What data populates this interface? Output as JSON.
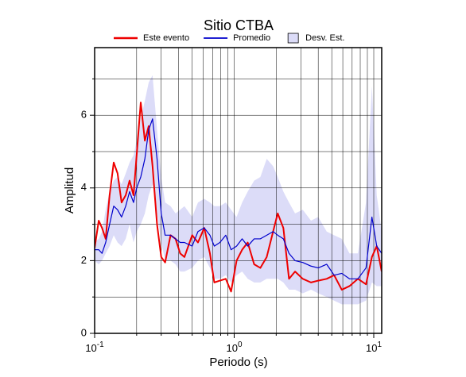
{
  "chart_data": {
    "type": "line",
    "title": "Sitio CTBA",
    "xlabel": "Periodo (s)",
    "ylabel": "Amplitud",
    "log_x": true,
    "grid": true,
    "legend": "top",
    "xlim": [
      0.1,
      11.4
    ],
    "ylim": [
      0,
      7.86
    ],
    "xticks": [
      {
        "value": 0.1,
        "label": "10",
        "exponent": "-1"
      },
      {
        "value": 1,
        "label": "10",
        "exponent": "0"
      },
      {
        "value": 10,
        "label": "10",
        "exponent": "1"
      }
    ],
    "xminor": [
      0.2,
      0.3,
      0.4,
      0.5,
      0.6,
      0.7,
      0.8,
      0.9,
      2,
      3,
      4,
      5,
      6,
      7,
      8,
      9
    ],
    "yticks": [
      0,
      2,
      4,
      6
    ],
    "yminor": [
      1,
      3,
      5,
      7
    ],
    "x": [
      0.1,
      0.107,
      0.113,
      0.12,
      0.128,
      0.137,
      0.146,
      0.156,
      0.167,
      0.178,
      0.19,
      0.2,
      0.214,
      0.229,
      0.244,
      0.26,
      0.28,
      0.3,
      0.32,
      0.35,
      0.38,
      0.41,
      0.44,
      0.5,
      0.55,
      0.61,
      0.67,
      0.72,
      0.79,
      0.87,
      0.95,
      1.04,
      1.14,
      1.25,
      1.39,
      1.54,
      1.71,
      1.9,
      2.05,
      2.25,
      2.47,
      2.73,
      3.1,
      3.55,
      4.0,
      4.6,
      5.2,
      5.9,
      6.7,
      7.7,
      8.8,
      9.7,
      10.5,
      11.4
    ],
    "band": {
      "name": "Desv. Est.",
      "color": "#dcdcf8",
      "edge": "#000000",
      "upper": [
        2.5,
        2.6,
        2.8,
        3.4,
        3.9,
        4.2,
        4.3,
        4.1,
        4.4,
        4.7,
        4.9,
        5.3,
        5.9,
        6.4,
        6.9,
        7.1,
        5.6,
        4.3,
        3.6,
        3.5,
        3.3,
        3.4,
        3.5,
        3.2,
        3.6,
        3.7,
        3.6,
        3.5,
        3.5,
        3.6,
        3.4,
        3.2,
        3.6,
        3.9,
        4.2,
        4.3,
        4.8,
        4.6,
        4.3,
        3.9,
        3.6,
        3.3,
        3.4,
        3.1,
        3.2,
        2.8,
        2.7,
        2.6,
        2.2,
        2.2,
        3.6,
        6.8,
        3.8,
        2.8
      ],
      "lower": [
        2.0,
        1.9,
        2.0,
        2.2,
        2.4,
        2.7,
        2.5,
        2.4,
        2.6,
        3.0,
        2.5,
        2.8,
        3.0,
        3.3,
        3.8,
        4.1,
        3.3,
        2.5,
        2.0,
        2.0,
        1.9,
        1.7,
        1.7,
        1.8,
        2.0,
        2.1,
        1.8,
        1.5,
        1.5,
        1.6,
        1.4,
        1.6,
        1.7,
        1.5,
        1.4,
        1.4,
        1.5,
        1.5,
        1.5,
        1.4,
        1.2,
        1.2,
        1.1,
        1.2,
        1.1,
        1.0,
        0.9,
        0.8,
        0.8,
        0.8,
        0.9,
        1.4,
        1.3,
        1.3
      ]
    },
    "series": [
      {
        "name": "Este evento",
        "color": "#ee0000",
        "width": 2,
        "values": [
          2.35,
          3.1,
          2.9,
          2.6,
          3.8,
          4.7,
          4.4,
          3.6,
          3.8,
          4.2,
          3.8,
          4.9,
          6.35,
          5.3,
          5.7,
          4.6,
          3.0,
          2.1,
          1.95,
          2.7,
          2.6,
          2.2,
          2.1,
          2.7,
          2.5,
          2.9,
          2.2,
          1.4,
          1.45,
          1.5,
          1.15,
          2.0,
          2.3,
          2.5,
          1.9,
          1.8,
          2.1,
          2.8,
          3.3,
          2.9,
          1.5,
          1.7,
          1.5,
          1.4,
          1.45,
          1.5,
          1.6,
          1.2,
          1.3,
          1.5,
          1.35,
          2.1,
          2.4,
          1.7
        ]
      },
      {
        "name": "Promedio",
        "color": "#0000cc",
        "width": 1.2,
        "values": [
          2.3,
          2.3,
          2.2,
          2.5,
          3.0,
          3.5,
          3.4,
          3.2,
          3.5,
          3.9,
          3.6,
          4.0,
          4.3,
          4.8,
          5.6,
          5.9,
          4.8,
          3.3,
          2.7,
          2.7,
          2.6,
          2.5,
          2.5,
          2.4,
          2.8,
          2.9,
          2.7,
          2.4,
          2.5,
          2.7,
          2.3,
          2.4,
          2.6,
          2.4,
          2.6,
          2.6,
          2.7,
          2.8,
          2.7,
          2.6,
          2.2,
          2.0,
          1.95,
          1.85,
          1.8,
          1.9,
          1.6,
          1.65,
          1.5,
          1.5,
          1.8,
          3.2,
          2.4,
          2.2
        ]
      }
    ]
  }
}
